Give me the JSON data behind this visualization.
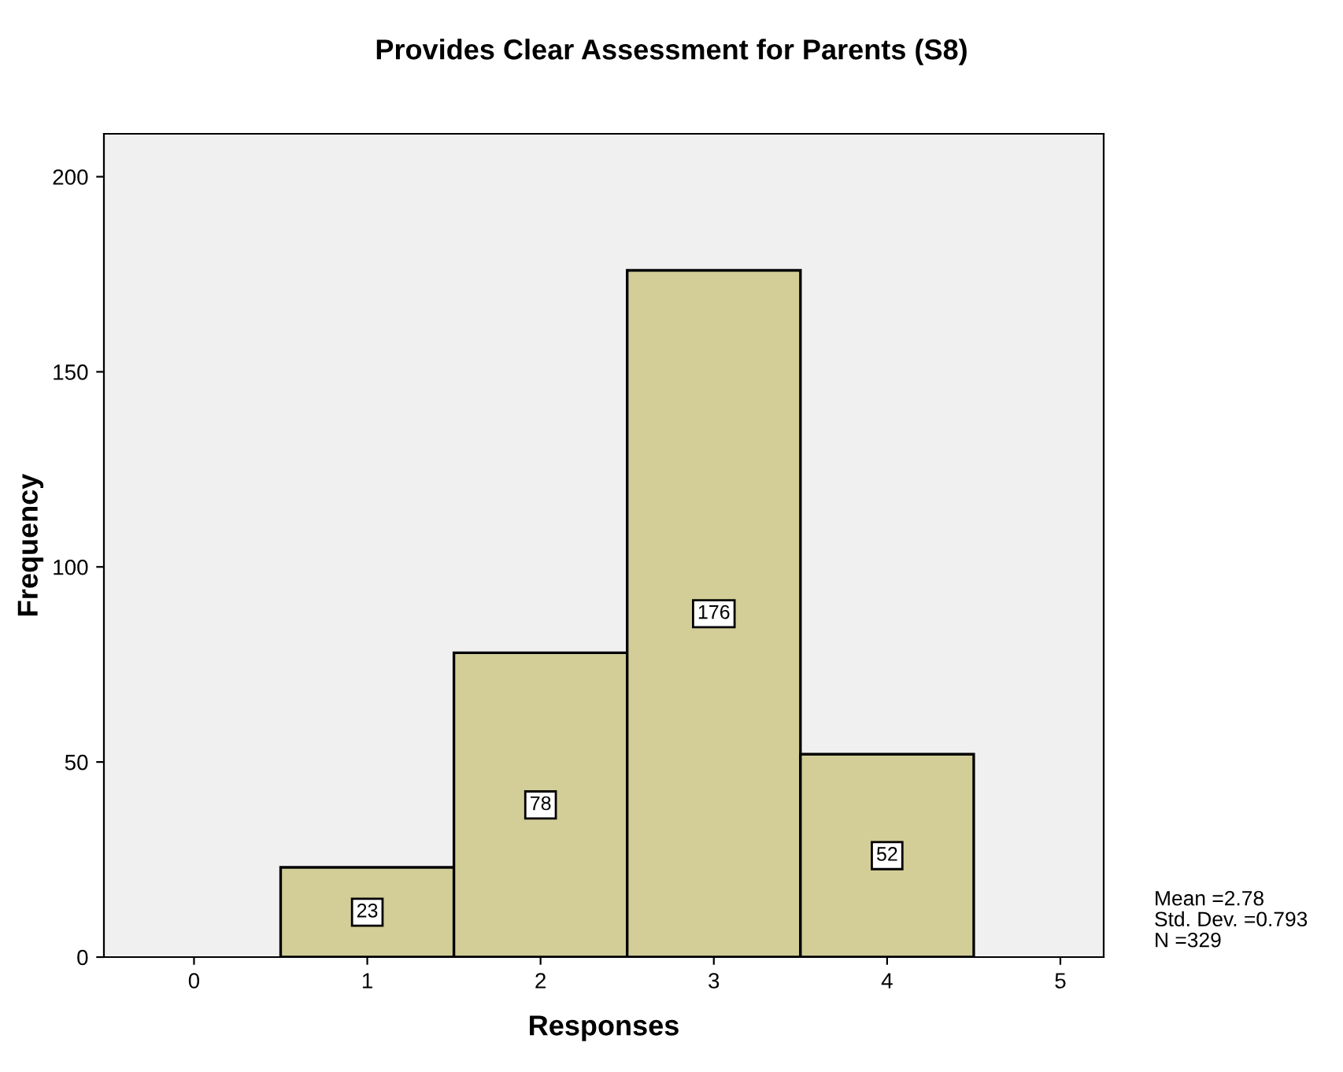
{
  "chart_data": {
    "type": "histogram",
    "title": "Provides Clear Assessment for Parents (S8)",
    "xlabel": "Responses",
    "ylabel": "Frequency",
    "bins": [
      0.5,
      1.5,
      2.5,
      3.5,
      4.5
    ],
    "values": [
      23,
      78,
      176,
      52
    ],
    "color": "#d3ce97",
    "xlim": [
      -0.52,
      5.25
    ],
    "xticks": [
      0,
      1,
      2,
      3,
      4,
      5
    ],
    "ylim": [
      0,
      211
    ],
    "yticks": [
      0,
      50,
      100,
      150,
      200
    ],
    "grid": false,
    "data_labels": true,
    "annotations": [
      "Mean =2.78\nStd. Dev. =0.793\nN =329"
    ]
  }
}
